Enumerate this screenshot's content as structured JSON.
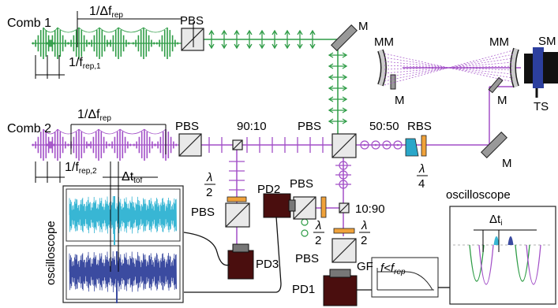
{
  "labels": {
    "comb1": "Comb 1",
    "comb2": "Comb 2",
    "inv_df_rep": "1/Δf",
    "inv_df_rep_sub": "rep",
    "inv_frep1": "1/f",
    "inv_frep1_sub": "rep,1",
    "inv_frep2": "1/f",
    "inv_frep2_sub": "rep,2",
    "dt_tof": "Δt",
    "dt_tof_sub": "tof",
    "pbs": "PBS",
    "ratio_90_10": "90:10",
    "ratio_10_90": "10:90",
    "ratio_50_50": "50:50",
    "rbs": "RBS",
    "m": "M",
    "mm": "MM",
    "sm": "SM",
    "ts": "TS",
    "lambda": "λ",
    "half": "2",
    "quarter": "4",
    "pd1": "PD1",
    "pd2": "PD2",
    "pd3": "PD3",
    "gf": "GF",
    "filter": "f<f",
    "filter_sub": "rep",
    "oscilloscope": "oscilloscope",
    "dt_i": "Δt",
    "dt_i_sub": "i"
  },
  "colors": {
    "comb1": "#2e9c46",
    "comb2": "#a24fc7",
    "trace_cyan": "#38b6d4",
    "trace_blue": "#3b4ba0",
    "waveplate": "#f0a23a",
    "pd": "#4a0e0e",
    "rbs": "#2aa7c9"
  }
}
